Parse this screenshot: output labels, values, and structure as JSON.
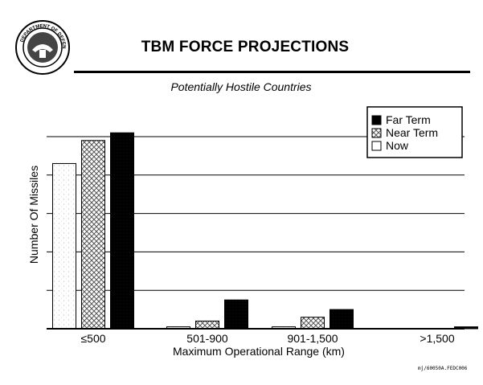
{
  "header": {
    "seal_label": "DEPARTMENT OF DEFENSE",
    "title": "TBM FORCE PROJECTIONS",
    "subtitle": "Potentially Hostile Countries"
  },
  "footer": {
    "doc_code": "mj/60050A.FEDC006"
  },
  "colors": {
    "far_term": "#000000",
    "near_term": "#9a9a9a",
    "now": "#e8e8e8",
    "grid": "#000000"
  },
  "chart_data": {
    "type": "bar",
    "xlabel": "Maximum Operational Range (km)",
    "ylabel": "Number Of Missiles",
    "categories": [
      "≤500",
      "501-900",
      "901-1,500",
      ">1,500"
    ],
    "ylim": [
      0,
      100
    ],
    "grid": true,
    "legend_position": "top-right",
    "series": [
      {
        "name": "Now",
        "values": [
          86,
          1,
          1,
          0
        ]
      },
      {
        "name": "Near Term",
        "values": [
          98,
          4,
          6,
          0
        ]
      },
      {
        "name": "Far Term",
        "values": [
          102,
          15,
          10,
          1
        ]
      }
    ],
    "legend_order": [
      "Far Term",
      "Near Term",
      "Now"
    ]
  }
}
